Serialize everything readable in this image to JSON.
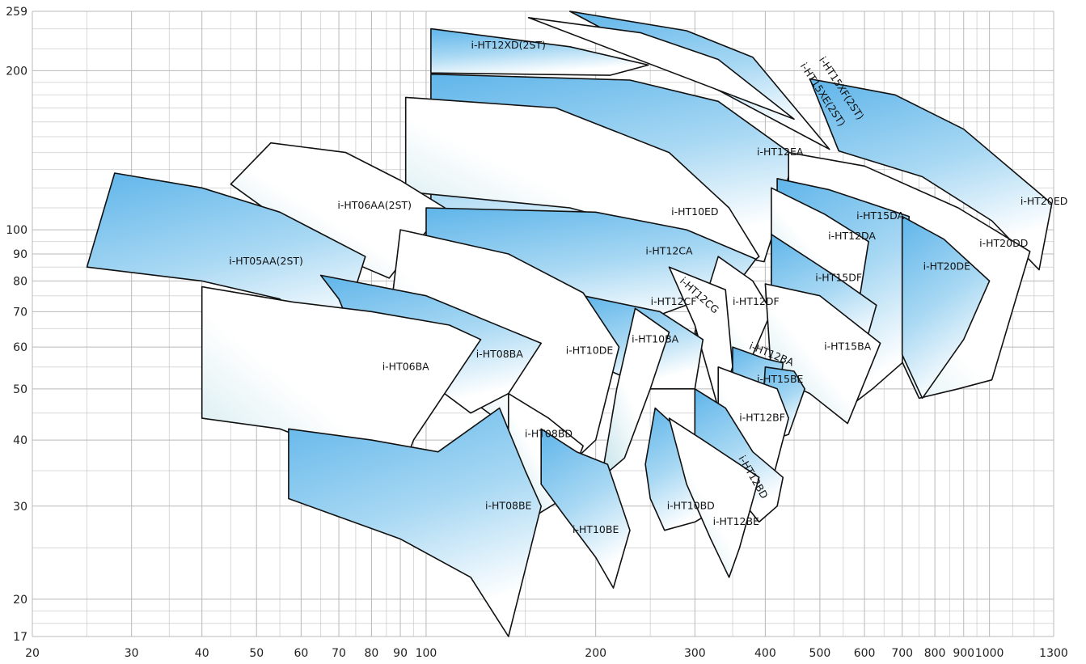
{
  "chart_data": {
    "type": "area",
    "title": "",
    "xlabel": "",
    "ylabel": "",
    "x_scale": "log",
    "y_scale": "log",
    "xlim": [
      20,
      1300
    ],
    "ylim": [
      17,
      259
    ],
    "grid": true,
    "x_ticks": [
      "20",
      "30",
      "40",
      "50",
      "60",
      "70",
      "80",
      "90",
      "100",
      "200",
      "300",
      "400",
      "500",
      "600",
      "700",
      "800",
      "900",
      "1000",
      "1300"
    ],
    "y_ticks": [
      "17",
      "20",
      "30",
      "40",
      "50",
      "60",
      "70",
      "80",
      "90",
      "100",
      "200",
      "259"
    ],
    "colors": {
      "fill_dark": "#72c0ec",
      "fill_light": "#ffffff",
      "fill_mid": "#b7dff4",
      "outline": "#111111",
      "grid": "#b9b9b9"
    },
    "series": [
      {
        "name": "i-HT15XF(2ST)",
        "fill": "dark",
        "points": [
          [
            180,
            259
          ],
          [
            290,
            238
          ],
          [
            380,
            212
          ],
          [
            520,
            142
          ]
        ],
        "bottom": [
          [
            440,
            148
          ],
          [
            500,
            140
          ]
        ],
        "label": [
          545,
          185
        ],
        "rot": 57
      },
      {
        "name": "i-HT15XE(2ST)",
        "fill": "light",
        "points": [
          [
            152,
            252
          ],
          [
            240,
            236
          ],
          [
            330,
            210
          ],
          [
            450,
            162
          ]
        ],
        "bottom": [
          [
            410,
            120
          ],
          [
            380,
            140
          ]
        ],
        "label": [
          505,
          180
        ],
        "rot": 57
      },
      {
        "name": "i-HT12XD(2ST)",
        "fill": "dark",
        "points": [
          [
            102,
            240
          ],
          [
            180,
            222
          ],
          [
            248,
            205
          ],
          [
            212,
            196
          ],
          [
            102,
            198
          ]
        ],
        "label": [
          140,
          223
        ]
      },
      {
        "name": "i-HT20ED",
        "fill": "dark",
        "points": [
          [
            480,
            193
          ],
          [
            680,
            180
          ],
          [
            900,
            155
          ],
          [
            1290,
            112
          ],
          [
            1225,
            84
          ],
          [
            1010,
            104
          ],
          [
            760,
            126
          ],
          [
            540,
            141
          ]
        ],
        "label": [
          1250,
          113
        ]
      },
      {
        "name": "i-HT12EA",
        "fill": "dark",
        "points": [
          [
            102,
            197
          ],
          [
            230,
            192
          ],
          [
            330,
            175
          ],
          [
            450,
            138
          ],
          [
            415,
            100
          ],
          [
            398,
            87
          ],
          [
            340,
            90
          ],
          [
            150,
            108
          ],
          [
            102,
            105
          ]
        ],
        "label": [
          425,
          140
        ]
      },
      {
        "name": "i-HT10ED",
        "fill": "light",
        "points": [
          [
            92,
            178
          ],
          [
            170,
            170
          ],
          [
            270,
            140
          ],
          [
            345,
            110
          ],
          [
            390,
            89
          ],
          [
            360,
            83
          ],
          [
            280,
            97
          ],
          [
            180,
            110
          ],
          [
            92,
            118
          ]
        ],
        "label": [
          300,
          108
        ]
      },
      {
        "name": "i-HT20DD",
        "fill": "light",
        "points": [
          [
            440,
            140
          ],
          [
            600,
            132
          ],
          [
            880,
            110
          ],
          [
            1180,
            91
          ],
          [
            1010,
            52
          ],
          [
            880,
            50
          ],
          [
            750,
            48
          ],
          [
            600,
            80
          ],
          [
            440,
            123
          ]
        ],
        "label": [
          1060,
          94
        ]
      },
      {
        "name": "i-HT15DA",
        "fill": "dark",
        "points": [
          [
            420,
            125
          ],
          [
            520,
            119
          ],
          [
            720,
            106
          ],
          [
            700,
            56
          ],
          [
            620,
            50
          ],
          [
            560,
            46
          ],
          [
            420,
            82
          ]
        ],
        "label": [
          640,
          106
        ]
      },
      {
        "name": "i-HT20DE",
        "fill": "dark",
        "points": [
          [
            700,
            106
          ],
          [
            830,
            96
          ],
          [
            1000,
            80
          ],
          [
            900,
            62
          ],
          [
            760,
            48
          ],
          [
            700,
            58
          ]
        ],
        "label": [
          840,
          85
        ]
      },
      {
        "name": "i-HT12DA",
        "fill": "light",
        "points": [
          [
            410,
            120
          ],
          [
            510,
            107
          ],
          [
            610,
            95
          ],
          [
            590,
            76
          ],
          [
            500,
            72
          ],
          [
            410,
            80
          ]
        ],
        "label": [
          570,
          97
        ]
      },
      {
        "name": "i-HT15DF",
        "fill": "dark",
        "points": [
          [
            410,
            98
          ],
          [
            530,
            82
          ],
          [
            630,
            72
          ],
          [
            600,
            60
          ],
          [
            500,
            55
          ],
          [
            410,
            62
          ]
        ],
        "label": [
          540,
          81
        ]
      },
      {
        "name": "i-HT06AA(2ST)",
        "fill": "light",
        "points": [
          [
            53,
            146
          ],
          [
            72,
            140
          ],
          [
            90,
            124
          ],
          [
            108,
            110
          ],
          [
            86,
            81
          ],
          [
            65,
            92
          ],
          [
            45,
            122
          ]
        ],
        "label": [
          81,
          111
        ]
      },
      {
        "name": "i-HT05AA(2ST)",
        "fill": "dark",
        "points": [
          [
            28,
            128
          ],
          [
            40,
            120
          ],
          [
            55,
            108
          ],
          [
            78,
            89
          ],
          [
            68,
            56
          ],
          [
            55,
            74
          ],
          [
            40,
            80
          ],
          [
            25,
            85
          ]
        ],
        "label": [
          52,
          87
        ]
      },
      {
        "name": "i-HT12CA",
        "fill": "dark",
        "points": [
          [
            100,
            110
          ],
          [
            200,
            108
          ],
          [
            290,
            100
          ],
          [
            385,
            88
          ],
          [
            360,
            80
          ],
          [
            310,
            74
          ],
          [
            250,
            68
          ],
          [
            170,
            63
          ],
          [
            100,
            63
          ]
        ],
        "label": [
          270,
          91
        ]
      },
      {
        "name": "i-HT12DF",
        "fill": "light",
        "points": [
          [
            330,
            89
          ],
          [
            380,
            80
          ],
          [
            410,
            70
          ],
          [
            380,
            58
          ],
          [
            340,
            55
          ],
          [
            300,
            64
          ]
        ],
        "label": [
          385,
          73
        ]
      },
      {
        "name": "i-HT15BA",
        "fill": "light",
        "points": [
          [
            400,
            79
          ],
          [
            500,
            75
          ],
          [
            640,
            61
          ],
          [
            560,
            43
          ],
          [
            480,
            49
          ],
          [
            410,
            53
          ]
        ],
        "label": [
          560,
          60
        ]
      },
      {
        "name": "i-HT12CG",
        "fill": "light",
        "points": [
          [
            270,
            85
          ],
          [
            340,
            77
          ],
          [
            350,
            55
          ],
          [
            330,
            46
          ],
          [
            300,
            66
          ]
        ],
        "label": [
          305,
          75
        ],
        "rot": 42
      },
      {
        "name": "i-HT12CF",
        "fill": "dark",
        "points": [
          [
            190,
            75
          ],
          [
            260,
            70
          ],
          [
            310,
            62
          ],
          [
            300,
            50
          ],
          [
            250,
            50
          ],
          [
            190,
            57
          ]
        ],
        "label": [
          275,
          73
        ]
      },
      {
        "name": "i-HT10DE",
        "fill": "light",
        "points": [
          [
            90,
            100
          ],
          [
            140,
            90
          ],
          [
            190,
            76
          ],
          [
            220,
            60
          ],
          [
            200,
            40
          ],
          [
            180,
            36
          ],
          [
            150,
            40
          ],
          [
            100,
            55
          ],
          [
            85,
            60
          ]
        ],
        "label": [
          195,
          59
        ]
      },
      {
        "name": "i-HT10BA",
        "fill": "light",
        "points": [
          [
            235,
            71
          ],
          [
            270,
            64
          ],
          [
            250,
            50
          ],
          [
            225,
            37
          ],
          [
            205,
            34
          ],
          [
            218,
            50
          ]
        ],
        "label": [
          255,
          62
        ]
      },
      {
        "name": "i-HT08BA",
        "fill": "dark",
        "points": [
          [
            65,
            82
          ],
          [
            100,
            75
          ],
          [
            160,
            61
          ],
          [
            140,
            49
          ],
          [
            120,
            45
          ],
          [
            100,
            52
          ],
          [
            75,
            62
          ],
          [
            70,
            74
          ]
        ],
        "label": [
          135,
          58
        ]
      },
      {
        "name": "i-HT06BA",
        "fill": "light",
        "points": [
          [
            40,
            78
          ],
          [
            58,
            73
          ],
          [
            80,
            70
          ],
          [
            110,
            66
          ],
          [
            125,
            62
          ],
          [
            95,
            40
          ],
          [
            85,
            29
          ],
          [
            70,
            38
          ],
          [
            55,
            42
          ],
          [
            40,
            44
          ]
        ],
        "label": [
          92,
          55
        ]
      },
      {
        "name": "i-HT12BA",
        "fill": "dark",
        "points": [
          [
            350,
            60
          ],
          [
            400,
            57
          ],
          [
            430,
            56
          ],
          [
            420,
            46
          ],
          [
            380,
            42
          ],
          [
            350,
            45
          ]
        ],
        "label": [
          410,
          58
        ],
        "rot": 22
      },
      {
        "name": "i-HT15BE",
        "fill": "dark",
        "points": [
          [
            400,
            55
          ],
          [
            450,
            54
          ],
          [
            470,
            50
          ],
          [
            440,
            41
          ],
          [
            410,
            40
          ],
          [
            395,
            45
          ]
        ],
        "label": [
          425,
          52
        ]
      },
      {
        "name": "i-HT12BF",
        "fill": "light",
        "points": [
          [
            330,
            55
          ],
          [
            380,
            52
          ],
          [
            420,
            50
          ],
          [
            440,
            44
          ],
          [
            410,
            33
          ],
          [
            380,
            31
          ],
          [
            350,
            38
          ],
          [
            330,
            42
          ]
        ],
        "label": [
          395,
          44
        ]
      },
      {
        "name": "i-HT12BD",
        "fill": "dark",
        "points": [
          [
            300,
            50
          ],
          [
            340,
            46
          ],
          [
            380,
            38
          ],
          [
            430,
            34
          ],
          [
            420,
            30
          ],
          [
            390,
            28
          ],
          [
            330,
            35
          ],
          [
            300,
            40
          ]
        ],
        "label": [
          380,
          34
        ],
        "rot": 60
      },
      {
        "name": "i-HT08BD",
        "fill": "light",
        "points": [
          [
            140,
            49
          ],
          [
            165,
            44
          ],
          [
            190,
            39
          ],
          [
            175,
            31
          ],
          [
            150,
            28
          ],
          [
            140,
            35
          ]
        ],
        "label": [
          165,
          41
        ]
      },
      {
        "name": "i-HT10BD",
        "fill": "dark",
        "points": [
          [
            255,
            46
          ],
          [
            280,
            42
          ],
          [
            320,
            37
          ],
          [
            335,
            30
          ],
          [
            300,
            28
          ],
          [
            265,
            27
          ],
          [
            250,
            31
          ],
          [
            245,
            36
          ]
        ],
        "label": [
          295,
          30
        ]
      },
      {
        "name": "i-HT12BE",
        "fill": "light",
        "points": [
          [
            270,
            44
          ],
          [
            310,
            40
          ],
          [
            360,
            36
          ],
          [
            390,
            34
          ],
          [
            360,
            25
          ],
          [
            345,
            22
          ],
          [
            320,
            26
          ],
          [
            290,
            33
          ]
        ],
        "label": [
          355,
          28
        ]
      },
      {
        "name": "i-HT08BE",
        "fill": "dark",
        "points": [
          [
            57,
            42
          ],
          [
            80,
            40
          ],
          [
            105,
            38
          ],
          [
            135,
            46
          ],
          [
            150,
            35
          ],
          [
            160,
            30
          ],
          [
            140,
            17
          ],
          [
            120,
            22
          ],
          [
            90,
            26
          ],
          [
            57,
            31
          ]
        ],
        "label": [
          140,
          30
        ]
      },
      {
        "name": "i-HT10BE",
        "fill": "dark",
        "points": [
          [
            160,
            42
          ],
          [
            185,
            38
          ],
          [
            210,
            36
          ],
          [
            230,
            27
          ],
          [
            215,
            21
          ],
          [
            200,
            24
          ],
          [
            175,
            29
          ],
          [
            160,
            33
          ]
        ],
        "label": [
          200,
          27
        ]
      }
    ]
  }
}
